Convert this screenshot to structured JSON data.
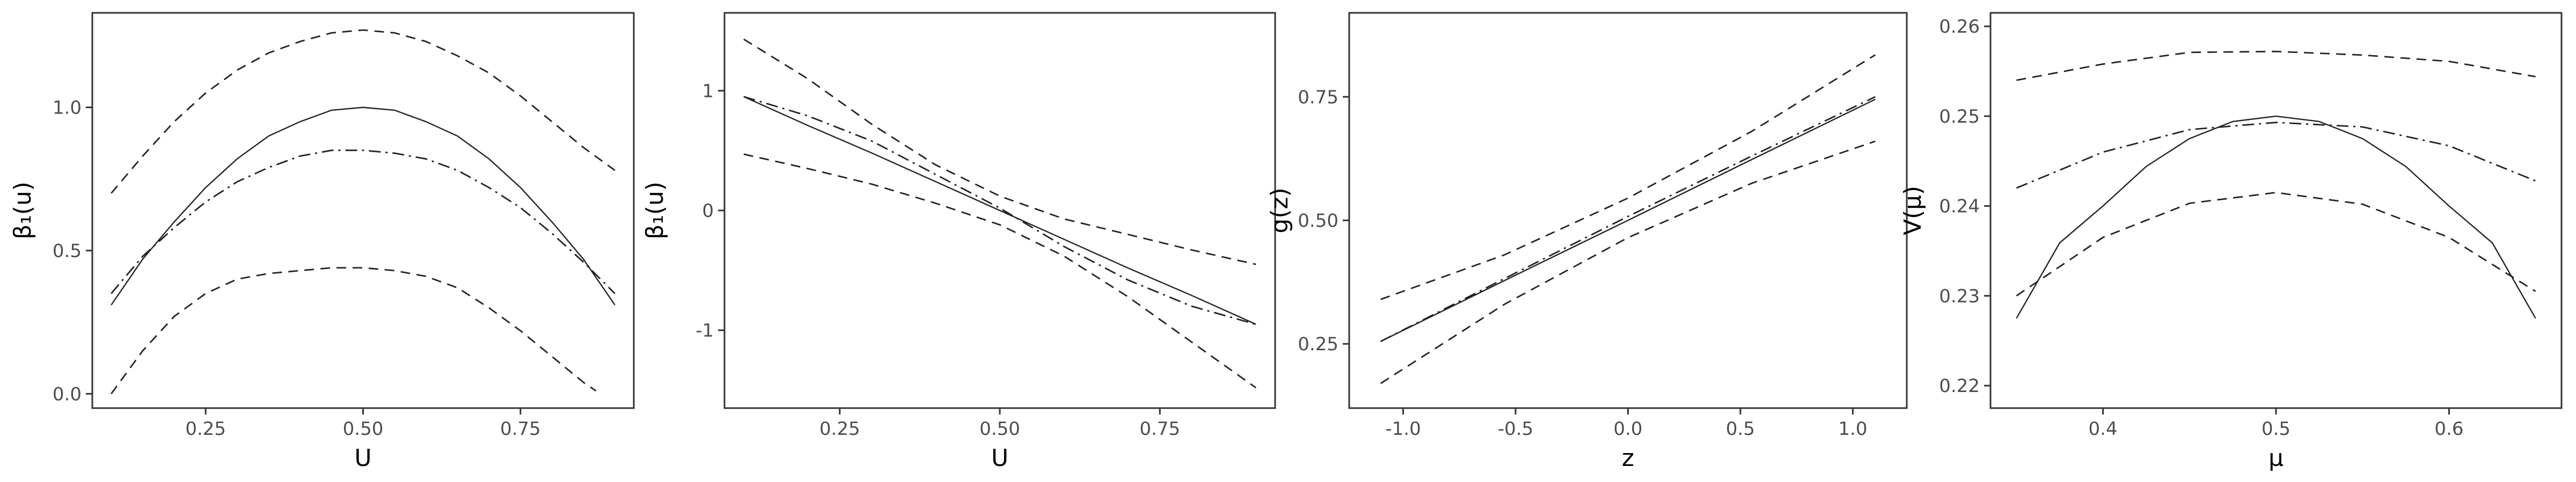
{
  "chart_data": [
    {
      "type": "line",
      "xlabel": "U",
      "ylabel": "β₁(u)",
      "xlim": [
        0.07,
        0.93
      ],
      "ylim": [
        -0.05,
        1.33
      ],
      "xticks": [
        0.25,
        0.5,
        0.75
      ],
      "xtick_labels": [
        "0.25",
        "0.50",
        "0.75"
      ],
      "yticks": [
        0.0,
        0.5,
        1.0
      ],
      "ytick_labels": [
        "0.0",
        "0.5",
        "1.0"
      ],
      "grid": false,
      "legend": "none",
      "series": [
        {
          "style": "solid",
          "x": [
            0.1,
            0.15,
            0.2,
            0.25,
            0.3,
            0.35,
            0.4,
            0.45,
            0.5,
            0.55,
            0.6,
            0.65,
            0.7,
            0.75,
            0.8,
            0.85,
            0.9
          ],
          "y": [
            0.31,
            0.47,
            0.6,
            0.72,
            0.82,
            0.9,
            0.95,
            0.99,
            1.0,
            0.99,
            0.95,
            0.9,
            0.82,
            0.72,
            0.6,
            0.47,
            0.31
          ]
        },
        {
          "style": "dashdot",
          "x": [
            0.1,
            0.15,
            0.2,
            0.25,
            0.3,
            0.35,
            0.4,
            0.45,
            0.5,
            0.55,
            0.6,
            0.65,
            0.7,
            0.75,
            0.8,
            0.85,
            0.9
          ],
          "y": [
            0.35,
            0.48,
            0.58,
            0.67,
            0.74,
            0.79,
            0.83,
            0.85,
            0.85,
            0.84,
            0.82,
            0.78,
            0.72,
            0.65,
            0.56,
            0.46,
            0.35
          ]
        },
        {
          "style": "dashed",
          "x": [
            0.1,
            0.15,
            0.2,
            0.25,
            0.3,
            0.35,
            0.4,
            0.45,
            0.5,
            0.55,
            0.6,
            0.65,
            0.7,
            0.75,
            0.8,
            0.85,
            0.9
          ],
          "y": [
            0.7,
            0.83,
            0.95,
            1.05,
            1.13,
            1.19,
            1.23,
            1.26,
            1.27,
            1.26,
            1.23,
            1.18,
            1.12,
            1.04,
            0.95,
            0.86,
            0.78
          ]
        },
        {
          "style": "dashed",
          "x": [
            0.1,
            0.15,
            0.2,
            0.25,
            0.3,
            0.35,
            0.4,
            0.45,
            0.5,
            0.55,
            0.6,
            0.65,
            0.7,
            0.75,
            0.8,
            0.85,
            0.87
          ],
          "y": [
            0.0,
            0.15,
            0.27,
            0.35,
            0.4,
            0.42,
            0.43,
            0.44,
            0.44,
            0.43,
            0.41,
            0.37,
            0.3,
            0.22,
            0.13,
            0.04,
            0.01
          ]
        }
      ]
    },
    {
      "type": "line",
      "xlabel": "U",
      "ylabel": "β₁(u)",
      "xlim": [
        0.07,
        0.93
      ],
      "ylim": [
        -1.65,
        1.65
      ],
      "xticks": [
        0.25,
        0.5,
        0.75
      ],
      "xtick_labels": [
        "0.25",
        "0.50",
        "0.75"
      ],
      "yticks": [
        -1,
        0,
        1
      ],
      "ytick_labels": [
        "-1",
        "0",
        "1"
      ],
      "grid": false,
      "legend": "none",
      "series": [
        {
          "style": "solid",
          "x": [
            0.1,
            0.2,
            0.3,
            0.4,
            0.5,
            0.6,
            0.7,
            0.8,
            0.9
          ],
          "y": [
            0.95,
            0.71,
            0.48,
            0.24,
            0.0,
            -0.24,
            -0.48,
            -0.71,
            -0.95
          ]
        },
        {
          "style": "dashdot",
          "x": [
            0.1,
            0.2,
            0.3,
            0.4,
            0.5,
            0.6,
            0.7,
            0.8,
            0.9
          ],
          "y": [
            0.95,
            0.79,
            0.58,
            0.3,
            0.02,
            -0.3,
            -0.58,
            -0.8,
            -0.95
          ]
        },
        {
          "style": "dashed",
          "x": [
            0.1,
            0.2,
            0.3,
            0.4,
            0.5,
            0.6,
            0.7,
            0.8,
            0.9
          ],
          "y": [
            1.43,
            1.1,
            0.72,
            0.38,
            0.12,
            -0.07,
            -0.2,
            -0.33,
            -0.45
          ]
        },
        {
          "style": "dashed",
          "x": [
            0.1,
            0.2,
            0.3,
            0.4,
            0.5,
            0.6,
            0.7,
            0.8,
            0.9
          ],
          "y": [
            0.47,
            0.35,
            0.22,
            0.06,
            -0.12,
            -0.38,
            -0.72,
            -1.1,
            -1.48
          ]
        }
      ]
    },
    {
      "type": "line",
      "xlabel": "z",
      "ylabel": "g(z)",
      "xlim": [
        -1.24,
        1.24
      ],
      "ylim": [
        0.12,
        0.92
      ],
      "xticks": [
        -1.0,
        -0.5,
        0.0,
        0.5,
        1.0
      ],
      "xtick_labels": [
        "-1.0",
        "-0.5",
        "0.0",
        "0.5",
        "1.0"
      ],
      "yticks": [
        0.25,
        0.5,
        0.75
      ],
      "ytick_labels": [
        "0.25",
        "0.50",
        "0.75"
      ],
      "grid": false,
      "legend": "none",
      "series": [
        {
          "style": "solid",
          "x": [
            -1.1,
            -0.55,
            0.0,
            0.55,
            1.1
          ],
          "y": [
            0.255,
            0.378,
            0.5,
            0.623,
            0.745
          ]
        },
        {
          "style": "dashdot",
          "x": [
            -1.1,
            -0.55,
            0.0,
            0.55,
            1.1
          ],
          "y": [
            0.255,
            0.382,
            0.508,
            0.63,
            0.75
          ]
        },
        {
          "style": "dashed",
          "x": [
            -1.1,
            -0.55,
            0.0,
            0.55,
            1.1
          ],
          "y": [
            0.34,
            0.43,
            0.545,
            0.68,
            0.835
          ]
        },
        {
          "style": "dashed",
          "x": [
            -1.1,
            -0.55,
            0.0,
            0.55,
            1.1
          ],
          "y": [
            0.17,
            0.33,
            0.465,
            0.575,
            0.66
          ]
        }
      ]
    },
    {
      "type": "line",
      "xlabel": "μ",
      "ylabel": "V(μ)",
      "xlim": [
        0.335,
        0.665
      ],
      "ylim": [
        0.2175,
        0.2615
      ],
      "xticks": [
        0.4,
        0.5,
        0.6
      ],
      "xtick_labels": [
        "0.4",
        "0.5",
        "0.6"
      ],
      "yticks": [
        0.22,
        0.23,
        0.24,
        0.25,
        0.26
      ],
      "ytick_labels": [
        "0.22",
        "0.23",
        "0.24",
        "0.25",
        "0.26"
      ],
      "grid": false,
      "legend": "none",
      "series": [
        {
          "style": "solid",
          "x": [
            0.35,
            0.375,
            0.4,
            0.425,
            0.45,
            0.475,
            0.5,
            0.525,
            0.55,
            0.575,
            0.6,
            0.625,
            0.65
          ],
          "y": [
            0.2275,
            0.2359,
            0.24,
            0.2444,
            0.2475,
            0.2494,
            0.25,
            0.2494,
            0.2475,
            0.2444,
            0.24,
            0.2359,
            0.2275
          ]
        },
        {
          "style": "dashdot",
          "x": [
            0.35,
            0.4,
            0.45,
            0.5,
            0.55,
            0.6,
            0.65
          ],
          "y": [
            0.242,
            0.246,
            0.2485,
            0.2493,
            0.2488,
            0.2467,
            0.2428
          ]
        },
        {
          "style": "dashed",
          "x": [
            0.35,
            0.4,
            0.45,
            0.5,
            0.55,
            0.6,
            0.65
          ],
          "y": [
            0.254,
            0.2558,
            0.2571,
            0.2572,
            0.2568,
            0.2561,
            0.2544
          ]
        },
        {
          "style": "dashed",
          "x": [
            0.35,
            0.4,
            0.45,
            0.5,
            0.55,
            0.6,
            0.65
          ],
          "y": [
            0.23,
            0.2365,
            0.2403,
            0.2415,
            0.2402,
            0.2365,
            0.2305
          ]
        }
      ]
    }
  ]
}
